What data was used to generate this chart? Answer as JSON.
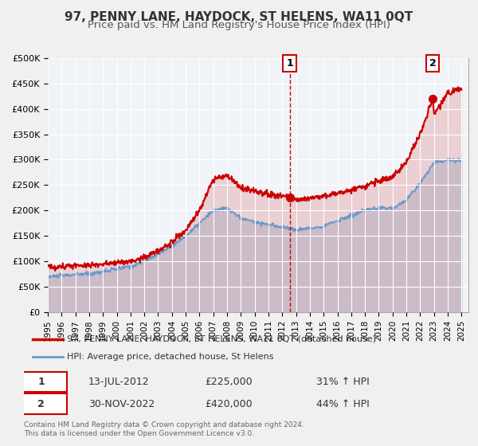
{
  "title": "97, PENNY LANE, HAYDOCK, ST HELENS, WA11 0QT",
  "subtitle": "Price paid vs. HM Land Registry's House Price Index (HPI)",
  "xlabel": "",
  "ylabel": "",
  "ylim": [
    0,
    500000
  ],
  "yticks": [
    0,
    50000,
    100000,
    150000,
    200000,
    250000,
    300000,
    350000,
    400000,
    450000,
    500000
  ],
  "ytick_labels": [
    "£0",
    "£50K",
    "£100K",
    "£150K",
    "£200K",
    "£250K",
    "£300K",
    "£350K",
    "£400K",
    "£450K",
    "£500K"
  ],
  "xlim_start": 1995.0,
  "xlim_end": 2025.5,
  "xtick_years": [
    1995,
    1996,
    1997,
    1998,
    1999,
    2000,
    2001,
    2002,
    2003,
    2004,
    2005,
    2006,
    2007,
    2008,
    2009,
    2010,
    2011,
    2012,
    2013,
    2014,
    2015,
    2016,
    2017,
    2018,
    2019,
    2020,
    2021,
    2022,
    2023,
    2024,
    2025
  ],
  "sale1_date": 2012.536,
  "sale1_price": 225000,
  "sale1_label": "1",
  "sale1_date_str": "13-JUL-2012",
  "sale1_price_str": "£225,000",
  "sale1_hpi_str": "31% ↑ HPI",
  "sale2_date": 2022.913,
  "sale2_price": 420000,
  "sale2_label": "2",
  "sale2_date_str": "30-NOV-2022",
  "sale2_price_str": "£420,000",
  "sale2_hpi_str": "44% ↑ HPI",
  "line1_color": "#cc0000",
  "line2_color": "#6699cc",
  "line1_label": "97, PENNY LANE, HAYDOCK, ST HELENS, WA11 0QT (detached house)",
  "line2_label": "HPI: Average price, detached house, St Helens",
  "background_color": "#f0f4f8",
  "plot_bg_color": "#f0f4f8",
  "grid_color": "#ffffff",
  "footer_text": "Contains HM Land Registry data © Crown copyright and database right 2024.\nThis data is licensed under the Open Government Licence v3.0.",
  "title_fontsize": 11,
  "subtitle_fontsize": 9.5
}
